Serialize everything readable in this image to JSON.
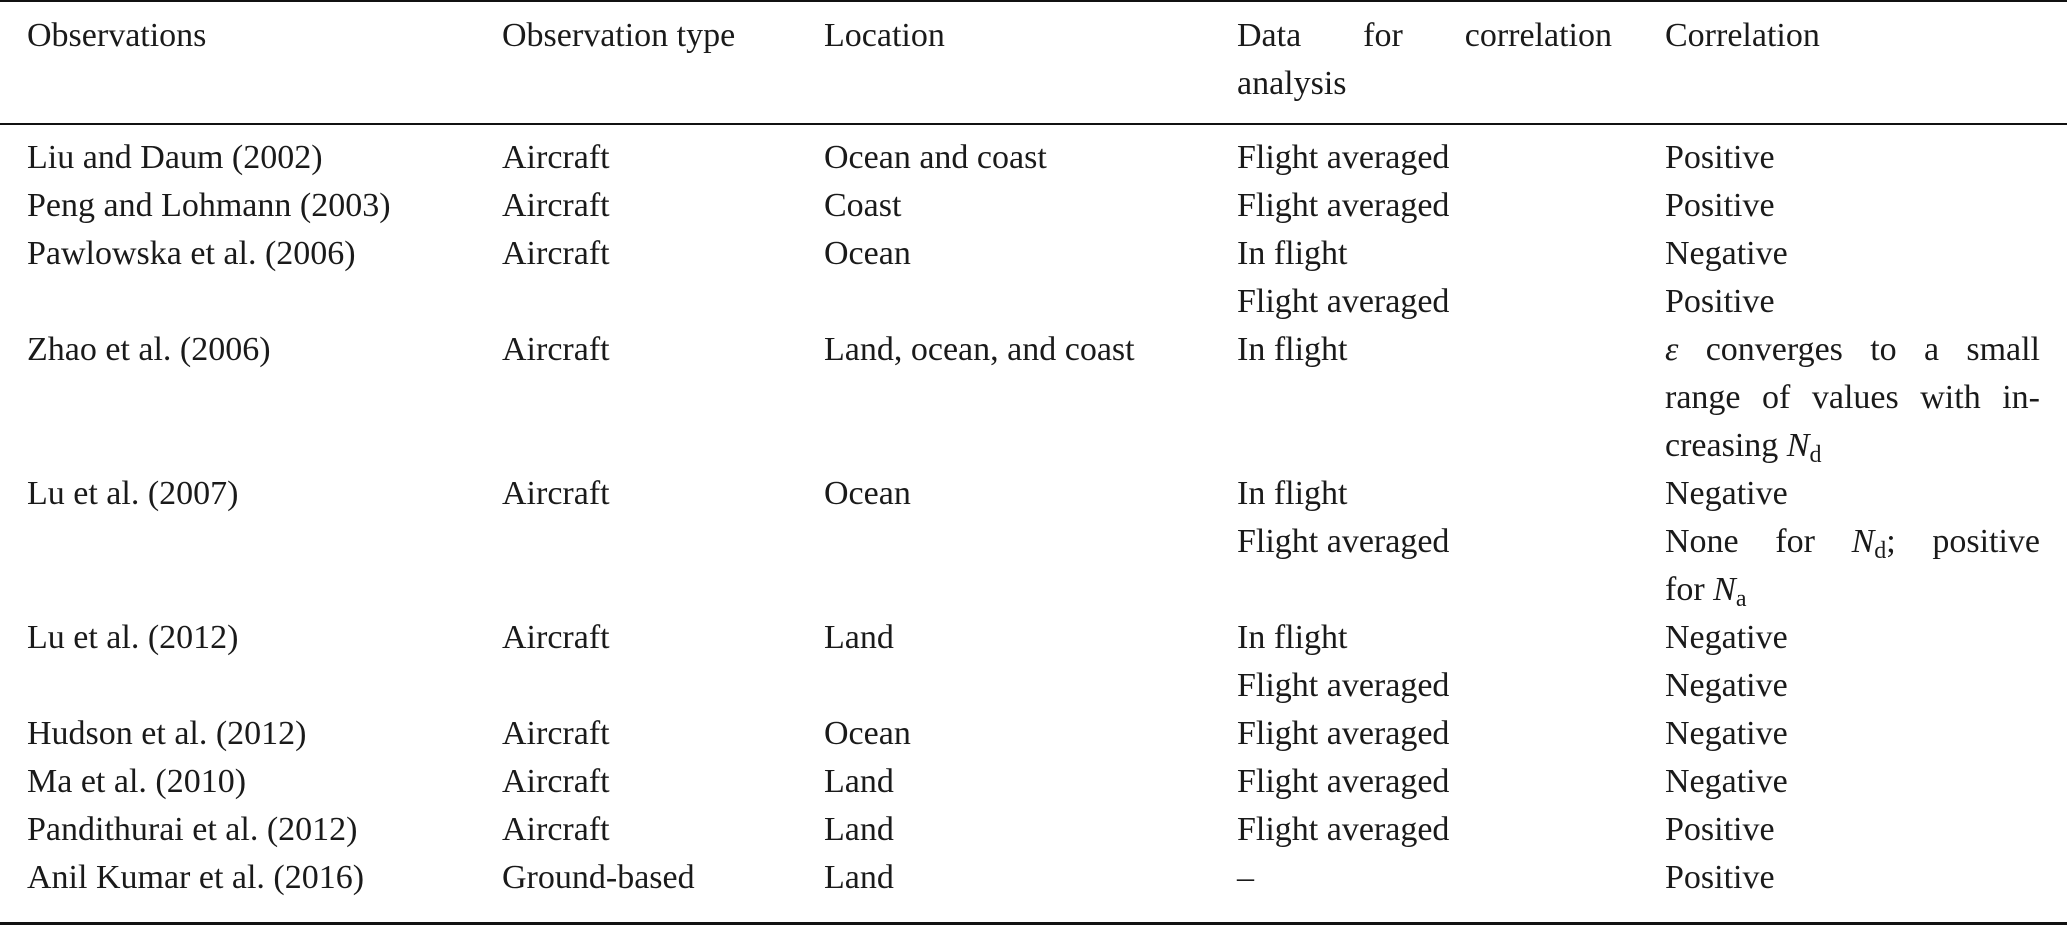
{
  "header": {
    "observations": "Observations",
    "observation_type": "Observation type",
    "location": "Location",
    "data_line1": "Data for correlation",
    "data_line2": "analysis",
    "correlation": "Correlation"
  },
  "rows": [
    {
      "obs": "Liu and Daum (2002)",
      "type": "Aircraft",
      "loc": "Ocean and coast",
      "data": "Flight averaged",
      "corr": "Positive"
    },
    {
      "obs": "Peng and Lohmann (2003)",
      "type": "Aircraft",
      "loc": "Coast",
      "data": "Flight averaged",
      "corr": "Positive"
    },
    {
      "obs": "Pawlowska et al. (2006)",
      "type": "Aircraft",
      "loc": "Ocean",
      "data": "In flight",
      "corr": "Negative"
    },
    {
      "data": "Flight averaged",
      "corr": "Positive"
    },
    {
      "obs": "Zhao et al. (2006)",
      "type": "Aircraft",
      "loc": "Land, ocean, and coast",
      "data": "In flight",
      "corr_symbol": "ε",
      "corr_line1": "converges to a small",
      "corr_line2": "range of values with in-",
      "corr_line3": "creasing",
      "corr_var": "N",
      "corr_sub": "d"
    },
    {
      "obs": "Lu et al. (2007)",
      "type": "Aircraft",
      "loc": "Ocean",
      "data": "In flight",
      "corr": "Negative"
    },
    {
      "data": "Flight averaged",
      "corr_a": "None for",
      "corr_var1": "N",
      "corr_sub1": "d",
      "corr_b": "; positive",
      "corr_c": "for",
      "corr_var2": "N",
      "corr_sub2": "a"
    },
    {
      "obs": "Lu et al. (2012)",
      "type": "Aircraft",
      "loc": "Land",
      "data": "In flight",
      "corr": "Negative"
    },
    {
      "data": "Flight averaged",
      "corr": "Negative"
    },
    {
      "obs": "Hudson et al. (2012)",
      "type": "Aircraft",
      "loc": "Ocean",
      "data": "Flight averaged",
      "corr": "Negative"
    },
    {
      "obs": "Ma et al. (2010)",
      "type": "Aircraft",
      "loc": "Land",
      "data": "Flight averaged",
      "corr": "Negative"
    },
    {
      "obs": "Pandithurai et al. (2012)",
      "type": "Aircraft",
      "loc": "Land",
      "data": "Flight averaged",
      "corr": "Positive"
    },
    {
      "obs": "Anil Kumar et al. (2016)",
      "type": "Ground-based",
      "loc": "Land",
      "data": "–",
      "corr": "Positive"
    }
  ]
}
